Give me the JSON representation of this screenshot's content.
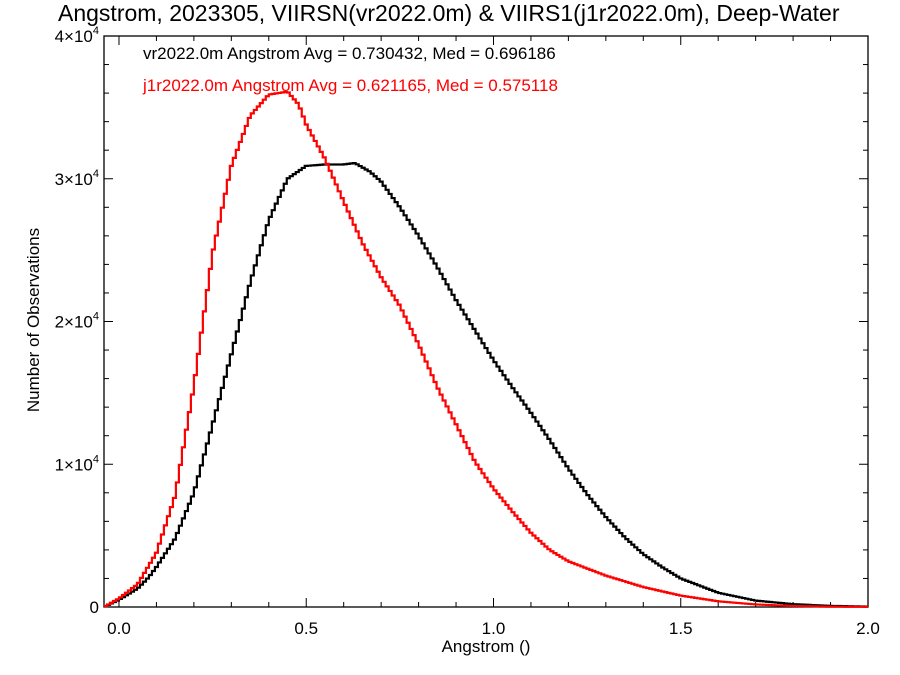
{
  "chart_data": {
    "type": "line",
    "title": "Angstrom, 2023305, VIIRSN(vr2022.0m) & VIIRS1(j1r2022.0m), Deep-Water",
    "xlabel": "Angstrom ()",
    "ylabel": "Number of Observations",
    "xlim": [
      -0.04,
      2.0
    ],
    "ylim": [
      0,
      40000
    ],
    "x_ticks": [
      {
        "value": 0.0,
        "label": "0.0"
      },
      {
        "value": 0.5,
        "label": "0.5"
      },
      {
        "value": 1.0,
        "label": "1.0"
      },
      {
        "value": 1.5,
        "label": "1.5"
      },
      {
        "value": 2.0,
        "label": "2.0"
      }
    ],
    "y_ticks": [
      {
        "value": 0,
        "label": "0"
      },
      {
        "value": 10000,
        "mantissa": "1×10",
        "exp": "4"
      },
      {
        "value": 20000,
        "mantissa": "2×10",
        "exp": "4"
      },
      {
        "value": 30000,
        "mantissa": "3×10",
        "exp": "4"
      },
      {
        "value": 40000,
        "mantissa": "4×10",
        "exp": "4"
      }
    ],
    "grid": false,
    "legend_placement": "top-left",
    "series": [
      {
        "name": "vr2022.0m",
        "legend": "vr2022.0m Angstrom Avg = 0.730432, Med = 0.696186",
        "color": "#000000",
        "x": [
          -0.04,
          0.0,
          0.05,
          0.08,
          0.1,
          0.15,
          0.2,
          0.25,
          0.3,
          0.35,
          0.4,
          0.45,
          0.5,
          0.55,
          0.6,
          0.63,
          0.67,
          0.7,
          0.75,
          0.8,
          0.85,
          0.9,
          0.95,
          1.0,
          1.05,
          1.1,
          1.15,
          1.2,
          1.25,
          1.3,
          1.35,
          1.4,
          1.45,
          1.5,
          1.6,
          1.7,
          1.8,
          1.9,
          2.0
        ],
        "y": [
          0,
          500,
          1300,
          2100,
          2800,
          4800,
          8000,
          12800,
          17700,
          22700,
          27100,
          30000,
          30900,
          31000,
          31000,
          31100,
          30500,
          29800,
          28000,
          26000,
          23800,
          21500,
          19400,
          17300,
          15400,
          13600,
          11700,
          9700,
          7900,
          6300,
          4900,
          3700,
          2800,
          2000,
          1000,
          450,
          200,
          80,
          30
        ]
      },
      {
        "name": "j1r2022.0m",
        "legend": "j1r2022.0m Angstrom Avg = 0.621165, Med = 0.575118",
        "color": "#ff0000",
        "x": [
          -0.04,
          0.0,
          0.05,
          0.1,
          0.15,
          0.2,
          0.25,
          0.3,
          0.35,
          0.4,
          0.45,
          0.48,
          0.5,
          0.55,
          0.6,
          0.65,
          0.7,
          0.75,
          0.8,
          0.85,
          0.9,
          0.95,
          1.0,
          1.05,
          1.1,
          1.15,
          1.2,
          1.3,
          1.4,
          1.5,
          1.6,
          1.7,
          1.8,
          1.9,
          2.0
        ],
        "y": [
          0,
          600,
          1600,
          3800,
          7800,
          15500,
          24800,
          30900,
          34400,
          35900,
          36100,
          35200,
          33800,
          31400,
          28400,
          25500,
          23100,
          21100,
          18400,
          15400,
          12800,
          10200,
          8300,
          6700,
          5200,
          4000,
          3200,
          2200,
          1400,
          800,
          400,
          180,
          70,
          25,
          10
        ]
      }
    ]
  }
}
